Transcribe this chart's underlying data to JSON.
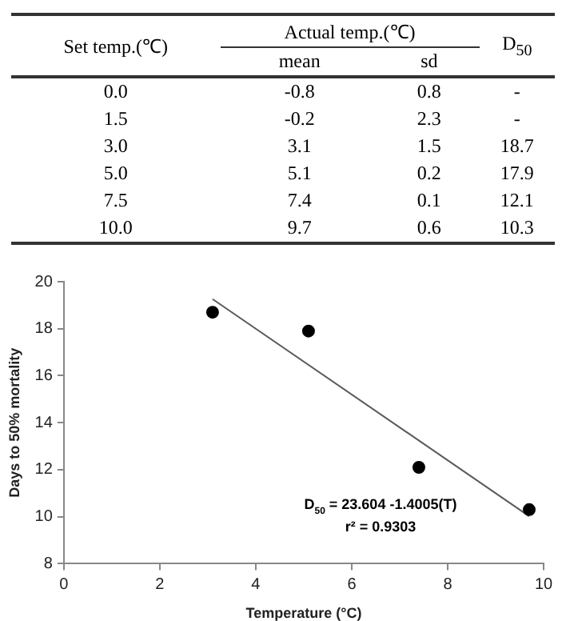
{
  "chart_data": [
    {
      "type": "other",
      "annotations": [
        "Set temp.(℃)",
        "Actual temp.(℃)",
        "D$_{50}$",
        "mean",
        "sd",
        "0.0",
        "-0.8",
        "0.8",
        "-",
        "1.5",
        "-0.2",
        "2.3",
        "-",
        "3.0",
        "3.1",
        "1.5",
        "18.7",
        "5.0",
        "5.1",
        "0.2",
        "17.9",
        "7.5",
        "7.4",
        "0.1",
        "12.1",
        "10.0",
        "9.7",
        "0.6",
        "10.3"
      ]
    },
    {
      "type": "scatter",
      "xlabel": "Temperature (°C)",
      "ylabel": "Days to 50% mortality",
      "series": [
        {
          "type": "scatter",
          "color": "#000000",
          "x": [
            3.1,
            5.1,
            7.4,
            9.7
          ],
          "values": [
            18.7,
            17.9,
            12.1,
            10.3
          ],
          "marker": "circle"
        },
        {
          "type": "line",
          "color": "#595959",
          "x": [
            3.1,
            9.7
          ],
          "values": [
            19.26,
            10.02
          ],
          "marker": "none"
        }
      ],
      "annotations": [
        "D$_{50}$ = 23.604 -1.4005(T)",
        "r² = 0.9303"
      ],
      "xlim": [
        0,
        10
      ],
      "xticks": [
        0,
        2,
        4,
        6,
        8,
        10
      ],
      "ylim": [
        8,
        20
      ],
      "yticks": [
        8,
        10,
        12,
        14,
        16,
        18,
        20
      ],
      "grid": false,
      "legend": false
    }
  ]
}
